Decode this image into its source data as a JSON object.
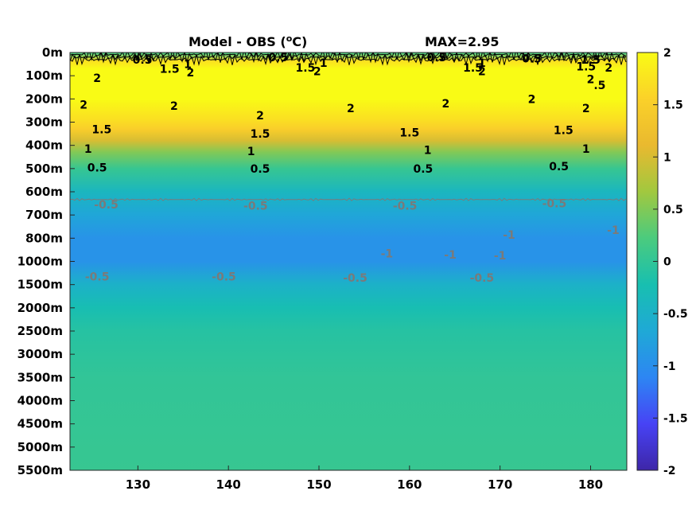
{
  "chart_data": {
    "type": "heatmap",
    "title": "Model - OBS (",
    "title_sup": "o",
    "title_unit": "C)",
    "max_label": "MAX=2.95",
    "x_ticks": [
      130,
      140,
      150,
      160,
      170,
      180
    ],
    "x_range": [
      122.5,
      184
    ],
    "y_tick_labels": [
      "0m",
      "100m",
      "200m",
      "300m",
      "400m",
      "500m",
      "600m",
      "700m",
      "800m",
      "1000m",
      "1500m",
      "2000m",
      "2500m",
      "3000m",
      "3500m",
      "4000m",
      "4500m",
      "5000m",
      "5500m"
    ],
    "colorbar": {
      "range": [
        -2,
        2
      ],
      "ticks": [
        2,
        1.5,
        1,
        0.5,
        0,
        -0.5,
        -1,
        -1.5,
        -2
      ]
    },
    "colormap": [
      "#3e26a8",
      "#4743f5",
      "#2d86f3",
      "#1fa9d6",
      "#18bfb0",
      "#4bcb7e",
      "#a1c83f",
      "#e9b92f",
      "#fbd129",
      "#f9fb15"
    ],
    "depth_profile": [
      {
        "level": 0,
        "value": 0.1
      },
      {
        "level": 0.35,
        "value": 1.7
      },
      {
        "level": 0.7,
        "value": 2.0
      },
      {
        "level": 2.0,
        "value": 2.0
      },
      {
        "level": 2.9,
        "value": 1.7
      },
      {
        "level": 3.3,
        "value": 1.5
      },
      {
        "level": 3.8,
        "value": 1.0
      },
      {
        "level": 4.3,
        "value": 0.5
      },
      {
        "level": 5.0,
        "value": 0.05
      },
      {
        "level": 6.0,
        "value": -0.4
      },
      {
        "level": 7.0,
        "value": -0.7
      },
      {
        "level": 8.0,
        "value": -0.95
      },
      {
        "level": 9.0,
        "value": -0.95
      },
      {
        "level": 10.0,
        "value": -0.5
      },
      {
        "level": 11.0,
        "value": -0.25
      },
      {
        "level": 12.0,
        "value": -0.1
      },
      {
        "level": 14.0,
        "value": 0.0
      },
      {
        "level": 18.0,
        "value": 0.05
      }
    ],
    "contour_labels": [
      {
        "text": "0.5",
        "x": 130.5,
        "level": 0.3
      },
      {
        "text": "1.5",
        "x": 133.5,
        "level": 0.7
      },
      {
        "text": "1",
        "x": 135.5,
        "level": 0.5
      },
      {
        "text": "2",
        "x": 135.8,
        "level": 0.85
      },
      {
        "text": "2",
        "x": 125.5,
        "level": 1.1
      },
      {
        "text": "0.5",
        "x": 145.5,
        "level": 0.2
      },
      {
        "text": "1.5",
        "x": 148.5,
        "level": 0.65
      },
      {
        "text": "1",
        "x": 150.5,
        "level": 0.45
      },
      {
        "text": "2",
        "x": 149.8,
        "level": 0.8
      },
      {
        "text": "0.5",
        "x": 163.0,
        "level": 0.2
      },
      {
        "text": "1.5",
        "x": 167.0,
        "level": 0.65
      },
      {
        "text": "1",
        "x": 168.0,
        "level": 0.45
      },
      {
        "text": "2",
        "x": 168.0,
        "level": 0.8
      },
      {
        "text": "0.5",
        "x": 173.5,
        "level": 0.25
      },
      {
        "text": "1.5",
        "x": 180.0,
        "level": 0.3
      },
      {
        "text": "1.5",
        "x": 179.5,
        "level": 0.6
      },
      {
        "text": "2",
        "x": 182.0,
        "level": 0.65
      },
      {
        "text": "2",
        "x": 180.0,
        "level": 1.15
      },
      {
        "text": ".5",
        "x": 181.0,
        "level": 1.4
      },
      {
        "text": "2",
        "x": 124.0,
        "level": 2.25
      },
      {
        "text": "2",
        "x": 134.0,
        "level": 2.3
      },
      {
        "text": "2",
        "x": 143.5,
        "level": 2.7
      },
      {
        "text": "2",
        "x": 153.5,
        "level": 2.4
      },
      {
        "text": "2",
        "x": 164.0,
        "level": 2.2
      },
      {
        "text": "2",
        "x": 173.5,
        "level": 2.0
      },
      {
        "text": "2",
        "x": 179.5,
        "level": 2.4
      },
      {
        "text": "1.5",
        "x": 126.0,
        "level": 3.3
      },
      {
        "text": "1.5",
        "x": 143.5,
        "level": 3.5
      },
      {
        "text": "1.5",
        "x": 160.0,
        "level": 3.45
      },
      {
        "text": "1.5",
        "x": 177.0,
        "level": 3.35
      },
      {
        "text": "1",
        "x": 124.5,
        "level": 4.15
      },
      {
        "text": "1",
        "x": 142.5,
        "level": 4.25
      },
      {
        "text": "1",
        "x": 162.0,
        "level": 4.2
      },
      {
        "text": "1",
        "x": 179.5,
        "level": 4.15
      },
      {
        "text": "0.5",
        "x": 125.5,
        "level": 4.95
      },
      {
        "text": "0.5",
        "x": 143.5,
        "level": 5.0
      },
      {
        "text": "0.5",
        "x": 161.5,
        "level": 5.0
      },
      {
        "text": "0.5",
        "x": 176.5,
        "level": 4.9
      }
    ],
    "neg_contour_labels": [
      {
        "text": "-0.5",
        "x": 126.5,
        "level": 6.55
      },
      {
        "text": "-0.5",
        "x": 143.0,
        "level": 6.6
      },
      {
        "text": "-0.5",
        "x": 159.5,
        "level": 6.6
      },
      {
        "text": "-0.5",
        "x": 176.0,
        "level": 6.5
      },
      {
        "text": "-1",
        "x": 182.5,
        "level": 7.65
      },
      {
        "text": "-1",
        "x": 171.0,
        "level": 7.85
      },
      {
        "text": "-1",
        "x": 157.5,
        "level": 8.65
      },
      {
        "text": "-1",
        "x": 164.5,
        "level": 8.7
      },
      {
        "text": "-1",
        "x": 170.0,
        "level": 8.75
      },
      {
        "text": "-0.5",
        "x": 125.5,
        "level": 9.65
      },
      {
        "text": "-0.5",
        "x": 139.5,
        "level": 9.65
      },
      {
        "text": "-0.5",
        "x": 154.0,
        "level": 9.7
      },
      {
        "text": "-0.5",
        "x": 168.0,
        "level": 9.7
      }
    ]
  }
}
